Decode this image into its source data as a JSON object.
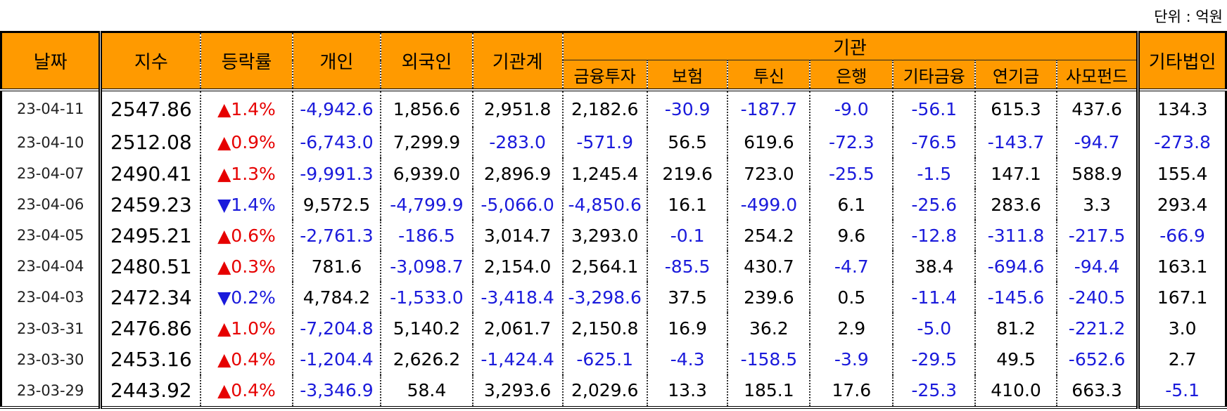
{
  "unit_label": "단위 : 억원",
  "headers": {
    "date": "날짜",
    "index": "지수",
    "change": "등락률",
    "individual": "개인",
    "foreign": "외국인",
    "inst_total": "기관계",
    "institution": "기관",
    "sub": [
      "금융투자",
      "보험",
      "투신",
      "은행",
      "기타금융",
      "연기금",
      "사모펀드"
    ],
    "other_corp": "기타법인"
  },
  "rows": [
    {
      "date": "23-04-11",
      "index": "2547.86",
      "dir": "up",
      "arrow": "▲",
      "change": "1.4%",
      "vals": [
        "-4,942.6",
        "1,856.6",
        "2,951.8",
        "2,182.6",
        "-30.9",
        "-187.7",
        "-9.0",
        "-56.1",
        "615.3",
        "437.6",
        "134.3"
      ]
    },
    {
      "date": "23-04-10",
      "index": "2512.08",
      "dir": "up",
      "arrow": "▲",
      "change": "0.9%",
      "vals": [
        "-6,743.0",
        "7,299.9",
        "-283.0",
        "-571.9",
        "56.5",
        "619.6",
        "-72.3",
        "-76.5",
        "-143.7",
        "-94.7",
        "-273.8"
      ]
    },
    {
      "date": "23-04-07",
      "index": "2490.41",
      "dir": "up",
      "arrow": "▲",
      "change": "1.3%",
      "vals": [
        "-9,991.3",
        "6,939.0",
        "2,896.9",
        "1,245.4",
        "219.6",
        "723.0",
        "-25.5",
        "-1.5",
        "147.1",
        "588.9",
        "155.4"
      ]
    },
    {
      "date": "23-04-06",
      "index": "2459.23",
      "dir": "down",
      "arrow": "▼",
      "change": "1.4%",
      "vals": [
        "9,572.5",
        "-4,799.9",
        "-5,066.0",
        "-4,850.6",
        "16.1",
        "-499.0",
        "6.1",
        "-25.6",
        "283.6",
        "3.3",
        "293.4"
      ]
    },
    {
      "date": "23-04-05",
      "index": "2495.21",
      "dir": "up",
      "arrow": "▲",
      "change": "0.6%",
      "vals": [
        "-2,761.3",
        "-186.5",
        "3,014.7",
        "3,293.0",
        "-0.1",
        "254.2",
        "9.6",
        "-12.8",
        "-311.8",
        "-217.5",
        "-66.9"
      ]
    },
    {
      "date": "23-04-04",
      "index": "2480.51",
      "dir": "up",
      "arrow": "▲",
      "change": "0.3%",
      "vals": [
        "781.6",
        "-3,098.7",
        "2,154.0",
        "2,564.1",
        "-85.5",
        "430.7",
        "-4.7",
        "38.4",
        "-694.6",
        "-94.4",
        "163.1"
      ]
    },
    {
      "date": "23-04-03",
      "index": "2472.34",
      "dir": "down",
      "arrow": "▼",
      "change": "0.2%",
      "vals": [
        "4,784.2",
        "-1,533.0",
        "-3,418.4",
        "-3,298.6",
        "37.5",
        "239.6",
        "0.5",
        "-11.4",
        "-145.6",
        "-240.5",
        "167.1"
      ]
    },
    {
      "date": "23-03-31",
      "index": "2476.86",
      "dir": "up",
      "arrow": "▲",
      "change": "1.0%",
      "vals": [
        "-7,204.8",
        "5,140.2",
        "2,061.7",
        "2,150.8",
        "16.9",
        "36.2",
        "2.9",
        "-5.0",
        "81.2",
        "-221.2",
        "3.0"
      ]
    },
    {
      "date": "23-03-30",
      "index": "2453.16",
      "dir": "up",
      "arrow": "▲",
      "change": "0.4%",
      "vals": [
        "-1,204.4",
        "2,626.2",
        "-1,424.4",
        "-625.1",
        "-4.3",
        "-158.5",
        "-3.9",
        "-29.5",
        "49.5",
        "-652.6",
        "2.7"
      ]
    },
    {
      "date": "23-03-29",
      "index": "2443.92",
      "dir": "up",
      "arrow": "▲",
      "change": "0.4%",
      "vals": [
        "-3,346.9",
        "58.4",
        "3,293.6",
        "2,029.6",
        "13.3",
        "185.1",
        "17.6",
        "-25.3",
        "410.0",
        "663.3",
        "-5.1"
      ]
    }
  ],
  "colors": {
    "header_bg": "#ff9a00",
    "negative": "#1a1adb",
    "up": "#e60000",
    "down": "#1a1adb"
  }
}
